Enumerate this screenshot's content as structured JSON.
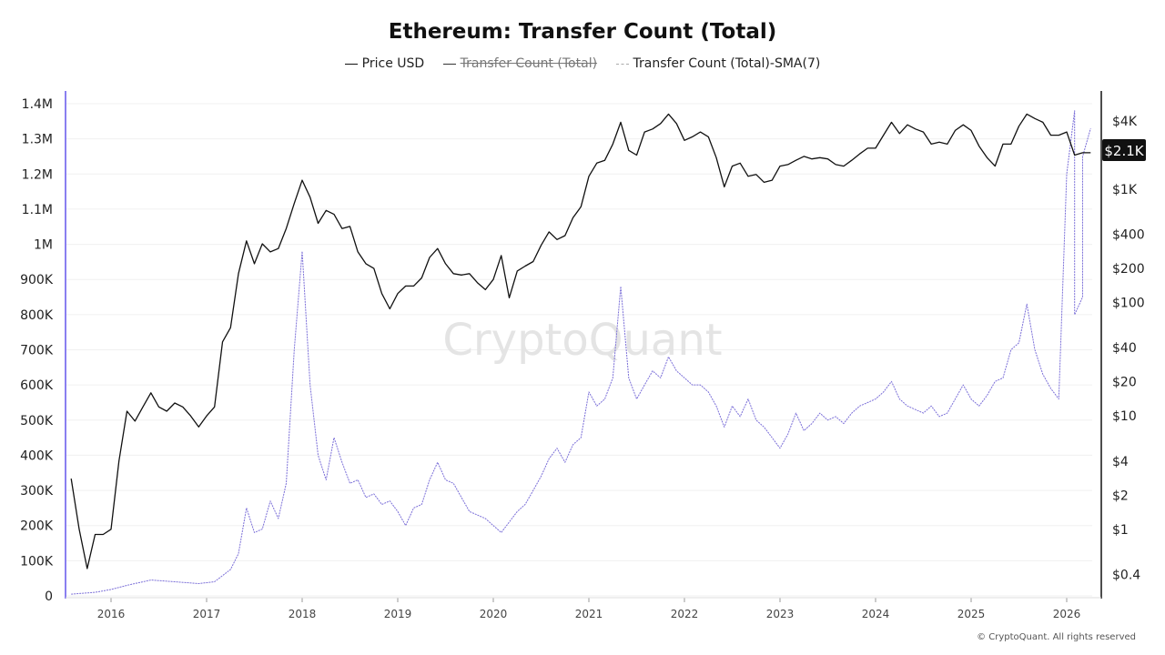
{
  "title": "Ethereum: Transfer Count (Total)",
  "legend": [
    {
      "label": "Price USD",
      "color": "#111111",
      "hidden": false
    },
    {
      "label": "Transfer Count (Total)",
      "color": "#333333",
      "hidden": true
    },
    {
      "label": "Transfer Count (Total)-SMA(7)",
      "color": "#7b6fd8",
      "hidden": false
    }
  ],
  "watermark": "CryptoQuant",
  "footer": "© CryptoQuant. All rights reserved",
  "price_badge": "$2.1K",
  "chart_data": {
    "type": "line",
    "title": "Ethereum: Transfer Count (Total)",
    "x_ticks": [
      "2016",
      "2017",
      "2018",
      "2019",
      "2020",
      "2021",
      "2022",
      "2023",
      "2024",
      "2025",
      "2026"
    ],
    "left_axis": {
      "ticks": [
        "0",
        "100K",
        "200K",
        "300K",
        "400K",
        "500K",
        "600K",
        "700K",
        "800K",
        "900K",
        "1M",
        "1.1M",
        "1.2M",
        "1.3M",
        "1.4M"
      ],
      "range": [
        0,
        1400000
      ],
      "scale": "linear"
    },
    "right_axis": {
      "ticks": [
        {
          "label": "$0.4",
          "v": 0.4
        },
        {
          "label": "$1",
          "v": 1
        },
        {
          "label": "$2",
          "v": 2
        },
        {
          "label": "$4",
          "v": 4
        },
        {
          "label": "$10",
          "v": 10
        },
        {
          "label": "$20",
          "v": 20
        },
        {
          "label": "$40",
          "v": 40
        },
        {
          "label": "$100",
          "v": 100
        },
        {
          "label": "$200",
          "v": 200
        },
        {
          "label": "$400",
          "v": 400
        },
        {
          "label": "$1K",
          "v": 1000
        },
        {
          "label": "$4K",
          "v": 4000
        }
      ],
      "scale": "log"
    },
    "grid": true,
    "legend_position": "top",
    "series": [
      {
        "name": "Price USD",
        "axis": "right",
        "color": "#111111",
        "points": [
          [
            "2015-08",
            2.8
          ],
          [
            "2015-09",
            1.0
          ],
          [
            "2015-10",
            0.45
          ],
          [
            "2015-11",
            0.9
          ],
          [
            "2015-12",
            0.9
          ],
          [
            "2016-01",
            1.0
          ],
          [
            "2016-02",
            4
          ],
          [
            "2016-03",
            11
          ],
          [
            "2016-04",
            9
          ],
          [
            "2016-05",
            12
          ],
          [
            "2016-06",
            16
          ],
          [
            "2016-07",
            12
          ],
          [
            "2016-08",
            11
          ],
          [
            "2016-09",
            13
          ],
          [
            "2016-10",
            12
          ],
          [
            "2016-11",
            10
          ],
          [
            "2016-12",
            8
          ],
          [
            "2017-01",
            10
          ],
          [
            "2017-02",
            12
          ],
          [
            "2017-03",
            45
          ],
          [
            "2017-04",
            60
          ],
          [
            "2017-05",
            180
          ],
          [
            "2017-06",
            350
          ],
          [
            "2017-07",
            220
          ],
          [
            "2017-08",
            330
          ],
          [
            "2017-09",
            280
          ],
          [
            "2017-10",
            300
          ],
          [
            "2017-11",
            450
          ],
          [
            "2017-12",
            750
          ],
          [
            "2018-01",
            1200
          ],
          [
            "2018-02",
            850
          ],
          [
            "2018-03",
            500
          ],
          [
            "2018-04",
            650
          ],
          [
            "2018-05",
            600
          ],
          [
            "2018-06",
            450
          ],
          [
            "2018-07",
            470
          ],
          [
            "2018-08",
            280
          ],
          [
            "2018-09",
            220
          ],
          [
            "2018-10",
            200
          ],
          [
            "2018-11",
            120
          ],
          [
            "2018-12",
            88
          ],
          [
            "2019-01",
            120
          ],
          [
            "2019-02",
            140
          ],
          [
            "2019-03",
            140
          ],
          [
            "2019-04",
            165
          ],
          [
            "2019-05",
            250
          ],
          [
            "2019-06",
            300
          ],
          [
            "2019-07",
            220
          ],
          [
            "2019-08",
            180
          ],
          [
            "2019-09",
            175
          ],
          [
            "2019-10",
            180
          ],
          [
            "2019-11",
            150
          ],
          [
            "2019-12",
            130
          ],
          [
            "2020-01",
            160
          ],
          [
            "2020-02",
            260
          ],
          [
            "2020-03",
            110
          ],
          [
            "2020-04",
            190
          ],
          [
            "2020-05",
            210
          ],
          [
            "2020-06",
            230
          ],
          [
            "2020-07",
            320
          ],
          [
            "2020-08",
            420
          ],
          [
            "2020-09",
            360
          ],
          [
            "2020-10",
            390
          ],
          [
            "2020-11",
            560
          ],
          [
            "2020-12",
            700
          ],
          [
            "2021-01",
            1300
          ],
          [
            "2021-02",
            1700
          ],
          [
            "2021-03",
            1800
          ],
          [
            "2021-04",
            2500
          ],
          [
            "2021-05",
            3900
          ],
          [
            "2021-06",
            2200
          ],
          [
            "2021-07",
            2000
          ],
          [
            "2021-08",
            3200
          ],
          [
            "2021-09",
            3400
          ],
          [
            "2021-10",
            3800
          ],
          [
            "2021-11",
            4600
          ],
          [
            "2021-12",
            3800
          ],
          [
            "2022-01",
            2700
          ],
          [
            "2022-02",
            2900
          ],
          [
            "2022-03",
            3200
          ],
          [
            "2022-04",
            2900
          ],
          [
            "2022-05",
            1900
          ],
          [
            "2022-06",
            1050
          ],
          [
            "2022-07",
            1600
          ],
          [
            "2022-08",
            1700
          ],
          [
            "2022-09",
            1300
          ],
          [
            "2022-10",
            1350
          ],
          [
            "2022-11",
            1150
          ],
          [
            "2022-12",
            1200
          ],
          [
            "2023-01",
            1600
          ],
          [
            "2023-02",
            1650
          ],
          [
            "2023-03",
            1800
          ],
          [
            "2023-04",
            1950
          ],
          [
            "2023-05",
            1850
          ],
          [
            "2023-06",
            1900
          ],
          [
            "2023-07",
            1850
          ],
          [
            "2023-08",
            1650
          ],
          [
            "2023-09",
            1600
          ],
          [
            "2023-10",
            1800
          ],
          [
            "2023-11",
            2050
          ],
          [
            "2023-12",
            2300
          ],
          [
            "2024-01",
            2300
          ],
          [
            "2024-02",
            3000
          ],
          [
            "2024-03",
            3900
          ],
          [
            "2024-04",
            3100
          ],
          [
            "2024-05",
            3700
          ],
          [
            "2024-06",
            3400
          ],
          [
            "2024-07",
            3200
          ],
          [
            "2024-08",
            2500
          ],
          [
            "2024-09",
            2600
          ],
          [
            "2024-10",
            2500
          ],
          [
            "2024-11",
            3300
          ],
          [
            "2024-12",
            3700
          ],
          [
            "2025-01",
            3300
          ],
          [
            "2025-02",
            2400
          ],
          [
            "2025-03",
            1900
          ],
          [
            "2025-04",
            1600
          ],
          [
            "2025-05",
            2500
          ],
          [
            "2025-06",
            2500
          ],
          [
            "2025-07",
            3600
          ],
          [
            "2025-08",
            4600
          ],
          [
            "2025-09",
            4200
          ],
          [
            "2025-10",
            3900
          ],
          [
            "2025-11",
            3000
          ],
          [
            "2025-12",
            3000
          ],
          [
            "2026-01",
            3200
          ],
          [
            "2026-02",
            2000
          ],
          [
            "2026-03",
            2100
          ],
          [
            "2026-04",
            2100
          ]
        ]
      },
      {
        "name": "Transfer Count (Total)-SMA(7)",
        "axis": "left",
        "color": "#7b6fd8",
        "points": [
          [
            "2015-08",
            5000
          ],
          [
            "2015-11",
            10000
          ],
          [
            "2016-01",
            18000
          ],
          [
            "2016-03",
            30000
          ],
          [
            "2016-06",
            45000
          ],
          [
            "2016-09",
            40000
          ],
          [
            "2016-12",
            35000
          ],
          [
            "2017-02",
            40000
          ],
          [
            "2017-04",
            75000
          ],
          [
            "2017-05",
            120000
          ],
          [
            "2017-06",
            250000
          ],
          [
            "2017-07",
            180000
          ],
          [
            "2017-08",
            190000
          ],
          [
            "2017-09",
            270000
          ],
          [
            "2017-10",
            220000
          ],
          [
            "2017-11",
            320000
          ],
          [
            "2017-12",
            700000
          ],
          [
            "2018-01",
            980000
          ],
          [
            "2018-02",
            600000
          ],
          [
            "2018-03",
            400000
          ],
          [
            "2018-04",
            330000
          ],
          [
            "2018-05",
            450000
          ],
          [
            "2018-06",
            380000
          ],
          [
            "2018-07",
            320000
          ],
          [
            "2018-08",
            330000
          ],
          [
            "2018-09",
            280000
          ],
          [
            "2018-10",
            290000
          ],
          [
            "2018-11",
            260000
          ],
          [
            "2018-12",
            270000
          ],
          [
            "2019-01",
            240000
          ],
          [
            "2019-02",
            200000
          ],
          [
            "2019-03",
            250000
          ],
          [
            "2019-04",
            260000
          ],
          [
            "2019-05",
            330000
          ],
          [
            "2019-06",
            380000
          ],
          [
            "2019-07",
            330000
          ],
          [
            "2019-08",
            320000
          ],
          [
            "2019-09",
            280000
          ],
          [
            "2019-10",
            240000
          ],
          [
            "2019-11",
            230000
          ],
          [
            "2019-12",
            220000
          ],
          [
            "2020-01",
            200000
          ],
          [
            "2020-02",
            180000
          ],
          [
            "2020-03",
            210000
          ],
          [
            "2020-04",
            240000
          ],
          [
            "2020-05",
            260000
          ],
          [
            "2020-06",
            300000
          ],
          [
            "2020-07",
            340000
          ],
          [
            "2020-08",
            390000
          ],
          [
            "2020-09",
            420000
          ],
          [
            "2020-10",
            380000
          ],
          [
            "2020-11",
            430000
          ],
          [
            "2020-12",
            450000
          ],
          [
            "2021-01",
            580000
          ],
          [
            "2021-02",
            540000
          ],
          [
            "2021-03",
            560000
          ],
          [
            "2021-04",
            620000
          ],
          [
            "2021-05",
            880000
          ],
          [
            "2021-06",
            620000
          ],
          [
            "2021-07",
            560000
          ],
          [
            "2021-08",
            600000
          ],
          [
            "2021-09",
            640000
          ],
          [
            "2021-10",
            620000
          ],
          [
            "2021-11",
            680000
          ],
          [
            "2021-12",
            640000
          ],
          [
            "2022-01",
            620000
          ],
          [
            "2022-02",
            600000
          ],
          [
            "2022-03",
            600000
          ],
          [
            "2022-04",
            580000
          ],
          [
            "2022-05",
            540000
          ],
          [
            "2022-06",
            480000
          ],
          [
            "2022-07",
            540000
          ],
          [
            "2022-08",
            510000
          ],
          [
            "2022-09",
            560000
          ],
          [
            "2022-10",
            500000
          ],
          [
            "2022-11",
            480000
          ],
          [
            "2022-12",
            450000
          ],
          [
            "2023-01",
            420000
          ],
          [
            "2023-02",
            460000
          ],
          [
            "2023-03",
            520000
          ],
          [
            "2023-04",
            470000
          ],
          [
            "2023-05",
            490000
          ],
          [
            "2023-06",
            520000
          ],
          [
            "2023-07",
            500000
          ],
          [
            "2023-08",
            510000
          ],
          [
            "2023-09",
            490000
          ],
          [
            "2023-10",
            520000
          ],
          [
            "2023-11",
            540000
          ],
          [
            "2023-12",
            550000
          ],
          [
            "2024-01",
            560000
          ],
          [
            "2024-02",
            580000
          ],
          [
            "2024-03",
            610000
          ],
          [
            "2024-04",
            560000
          ],
          [
            "2024-05",
            540000
          ],
          [
            "2024-06",
            530000
          ],
          [
            "2024-07",
            520000
          ],
          [
            "2024-08",
            540000
          ],
          [
            "2024-09",
            510000
          ],
          [
            "2024-10",
            520000
          ],
          [
            "2024-11",
            560000
          ],
          [
            "2024-12",
            600000
          ],
          [
            "2025-01",
            560000
          ],
          [
            "2025-02",
            540000
          ],
          [
            "2025-03",
            570000
          ],
          [
            "2025-04",
            610000
          ],
          [
            "2025-05",
            620000
          ],
          [
            "2025-06",
            700000
          ],
          [
            "2025-07",
            720000
          ],
          [
            "2025-08",
            830000
          ],
          [
            "2025-09",
            700000
          ],
          [
            "2025-10",
            630000
          ],
          [
            "2025-11",
            590000
          ],
          [
            "2025-12",
            560000
          ],
          [
            "2026-01",
            1200000
          ],
          [
            "2026-02",
            1380000
          ],
          [
            "2026-02",
            800000
          ],
          [
            "2026-03",
            850000
          ],
          [
            "2026-03",
            1250000
          ],
          [
            "2026-04",
            1330000
          ]
        ]
      }
    ]
  }
}
